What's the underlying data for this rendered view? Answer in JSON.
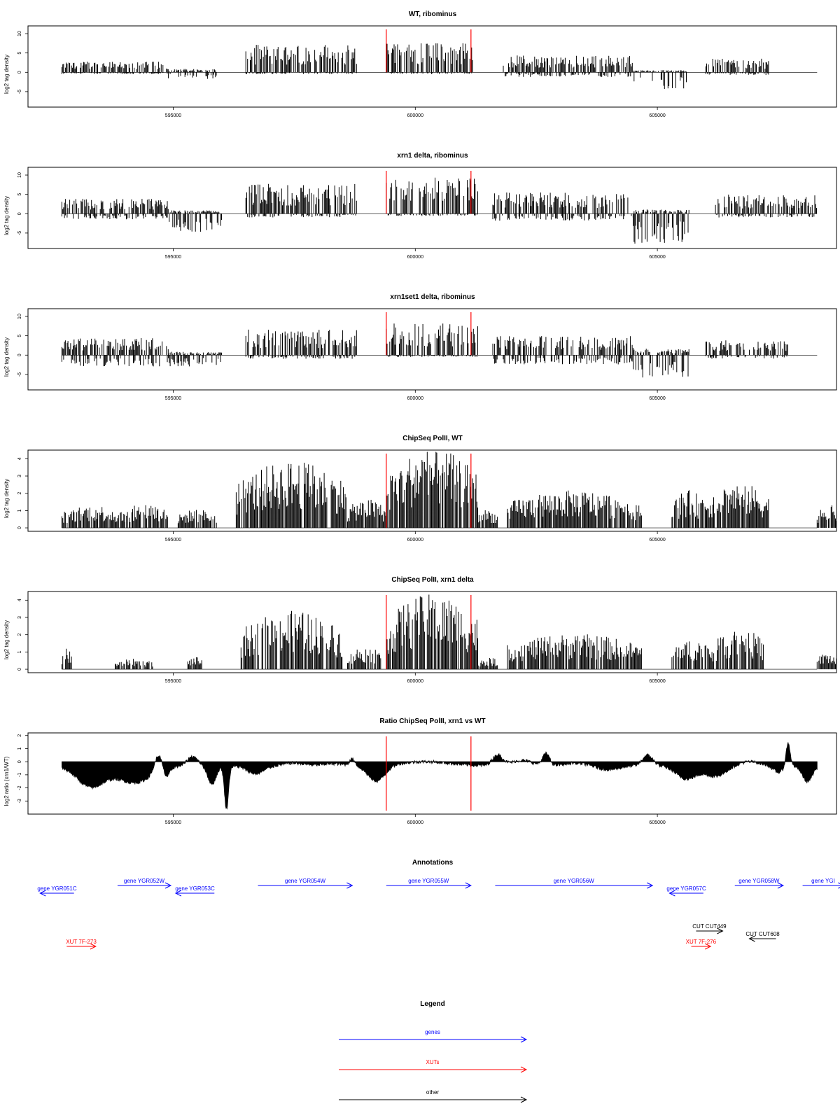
{
  "colors": {
    "gene": "#0000ff",
    "xut": "#ff0000",
    "other": "#000000",
    "marker": "#ff0000",
    "bars": "#000000"
  },
  "chart_data": [
    {
      "type": "bar",
      "title": "WT, ribominus",
      "ylabel": "log2 tag density",
      "xlim": [
        592000,
        608700
      ],
      "ylim": [
        -9,
        12
      ],
      "yticks": [
        -5,
        0,
        5,
        10
      ],
      "xticks": [
        "595000",
        "600000",
        "605000"
      ],
      "profile": "rna_wt"
    },
    {
      "type": "bar",
      "title": "xrn1 delta, ribominus",
      "ylabel": "log2 tag density",
      "xlim": [
        592000,
        608700
      ],
      "ylim": [
        -9,
        12
      ],
      "yticks": [
        -5,
        0,
        5,
        10
      ],
      "xticks": [
        "595000",
        "600000",
        "605000"
      ],
      "profile": "rna_xrn1"
    },
    {
      "type": "bar",
      "title": "xrn1set1 delta, ribominus",
      "ylabel": "log2 tag density",
      "xlim": [
        592000,
        608700
      ],
      "ylim": [
        -9,
        12
      ],
      "yticks": [
        -5,
        0,
        5,
        10
      ],
      "xticks": [
        "595000",
        "600000",
        "605000"
      ],
      "profile": "rna_xrn1set1"
    },
    {
      "type": "bar",
      "title": "ChipSeq PolII, WT",
      "ylabel": "log2 tag density",
      "xlim": [
        592000,
        608700
      ],
      "ylim": [
        -0.2,
        4.5
      ],
      "yticks": [
        0,
        1,
        2,
        3,
        4
      ],
      "xticks": [
        "595000",
        "600000",
        "605000"
      ],
      "profile": "chip_wt"
    },
    {
      "type": "bar",
      "title": "ChipSeq PolII, xrn1 delta",
      "ylabel": "log2 tag density",
      "xlim": [
        592000,
        608700
      ],
      "ylim": [
        -0.2,
        4.5
      ],
      "yticks": [
        0,
        1,
        2,
        3,
        4
      ],
      "xticks": [
        "595000",
        "600000",
        "605000"
      ],
      "profile": "chip_xrn1"
    },
    {
      "type": "area",
      "title": "Ratio ChipSeq PolII, xrn1 vs WT",
      "ylabel": "log2 ratio (xrn1/WT)",
      "xlim": [
        592000,
        608700
      ],
      "ylim": [
        -4,
        2.2
      ],
      "yticks": [
        -3,
        -2,
        -1,
        0,
        1,
        2
      ],
      "xticks": [
        "595000",
        "600000",
        "605000"
      ],
      "profile": "ratio"
    }
  ],
  "markers": [
    599400,
    601150
  ],
  "regions": {
    "rna_wt": [
      [
        592700,
        594900,
        2.5,
        0.4
      ],
      [
        594900,
        595900,
        0.8,
        1.5
      ],
      [
        596500,
        598800,
        6.5,
        0.4
      ],
      [
        599400,
        601200,
        7,
        0.4
      ],
      [
        601800,
        604500,
        4,
        1
      ],
      [
        604500,
        605600,
        0.5,
        4
      ],
      [
        606000,
        607300,
        3.2,
        0.6
      ]
    ],
    "rna_xrn1": [
      [
        592700,
        594900,
        3.5,
        1.2
      ],
      [
        594900,
        596000,
        0.8,
        4
      ],
      [
        596500,
        598800,
        7,
        0.8
      ],
      [
        599400,
        601300,
        8.5,
        0.5
      ],
      [
        601600,
        604500,
        5,
        1.5
      ],
      [
        604500,
        605700,
        1,
        6.5
      ],
      [
        606200,
        608300,
        4.5,
        0.8
      ]
    ],
    "rna_xrn1set1": [
      [
        592700,
        594900,
        4,
        2.5
      ],
      [
        594900,
        596000,
        0.8,
        2.5
      ],
      [
        596500,
        598800,
        6,
        0.8
      ],
      [
        599400,
        601300,
        7.5,
        0.4
      ],
      [
        601600,
        604500,
        4.5,
        2
      ],
      [
        604500,
        605700,
        1.5,
        5
      ],
      [
        606000,
        607700,
        3.5,
        0.8
      ]
    ],
    "chip_wt": [
      [
        592700,
        594000,
        1.1,
        0
      ],
      [
        594000,
        594900,
        1.2,
        0
      ],
      [
        595100,
        595900,
        0.9,
        0
      ],
      [
        596300,
        598600,
        3.2,
        0
      ],
      [
        598600,
        599400,
        1.4,
        0
      ],
      [
        599400,
        601300,
        3.8,
        0
      ],
      [
        601300,
        601700,
        0.9,
        0
      ],
      [
        601900,
        604700,
        1.8,
        0
      ],
      [
        605300,
        606000,
        1.8,
        0
      ],
      [
        606000,
        607300,
        2.2,
        0
      ],
      [
        608300,
        608700,
        1.2,
        0
      ]
    ],
    "chip_xrn1": [
      [
        592700,
        592900,
        1,
        0
      ],
      [
        593800,
        594600,
        0.5,
        0
      ],
      [
        595300,
        595600,
        0.6,
        0
      ],
      [
        596400,
        598500,
        2.8,
        0
      ],
      [
        598600,
        599300,
        1.1,
        0
      ],
      [
        599400,
        601300,
        3.6,
        0
      ],
      [
        601300,
        601700,
        0.6,
        0
      ],
      [
        601900,
        604700,
        1.7,
        0
      ],
      [
        605300,
        606200,
        1.5,
        0
      ],
      [
        606200,
        607200,
        2,
        0
      ],
      [
        608300,
        608700,
        0.8,
        0
      ]
    ]
  },
  "annotations": {
    "title": "Annotations",
    "genes": [
      {
        "label": "gene YGR051C",
        "start": 592250,
        "end": 592950,
        "strand": "-",
        "row": 2
      },
      {
        "label": "gene YGR052W",
        "start": 593850,
        "end": 594950,
        "strand": "+",
        "row": 1
      },
      {
        "label": "gene YGR053C",
        "start": 595050,
        "end": 595850,
        "strand": "-",
        "row": 2
      },
      {
        "label": "gene YGR054W",
        "start": 596750,
        "end": 598700,
        "strand": "+",
        "row": 1
      },
      {
        "label": "gene YGR055W",
        "start": 599400,
        "end": 601150,
        "strand": "+",
        "row": 1
      },
      {
        "label": "gene YGR056W",
        "start": 601650,
        "end": 604900,
        "strand": "+",
        "row": 1
      },
      {
        "label": "gene YGR057C",
        "start": 605250,
        "end": 605950,
        "strand": "-",
        "row": 2
      },
      {
        "label": "gene YGR058W",
        "start": 606600,
        "end": 607600,
        "strand": "+",
        "row": 1
      },
      {
        "label": "gene YGI",
        "start": 608000,
        "end": 608850,
        "strand": "+",
        "row": 1
      }
    ],
    "xuts": [
      {
        "label": "XUT 7F-273",
        "start": 592800,
        "end": 593400,
        "strand": "+",
        "row": 4
      },
      {
        "label": "XUT 7F-276",
        "start": 605700,
        "end": 606100,
        "strand": "+",
        "row": 4
      }
    ],
    "others": [
      {
        "label": "CUT CUT449",
        "start": 605800,
        "end": 606350,
        "strand": "+",
        "row": 3
      },
      {
        "label": "CUT CUT608",
        "start": 606900,
        "end": 607450,
        "strand": "-",
        "row": 3.3
      }
    ]
  },
  "legend": {
    "title": "Legend",
    "items": [
      {
        "label": "genes",
        "kind": "gene"
      },
      {
        "label": "XUTs",
        "kind": "xut"
      },
      {
        "label": "other",
        "kind": "other"
      }
    ]
  }
}
